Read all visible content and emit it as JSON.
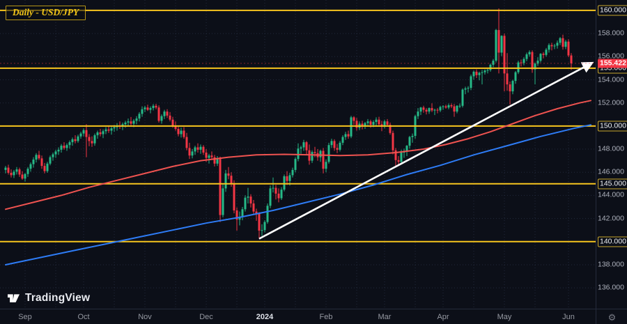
{
  "chart": {
    "title": "Daily - USD/JPY",
    "symbol": "USD/JPY",
    "timeframe": "Daily",
    "colors": {
      "background": "#0c0f18",
      "grid": "#222a3c",
      "candle_up": "#26b987",
      "candle_down": "#f23645",
      "level_yellow": "#f7c51e",
      "ma_red": "#ef5350",
      "ma_blue": "#2e7cf6",
      "trendline": "#ffffff",
      "axis_text": "#aeb2bd",
      "axis_muted": "#9598a1",
      "current_badge": "#f23645"
    }
  },
  "watermark": {
    "brand": "TradingView"
  },
  "icons": {
    "settings_gear": "⚙"
  },
  "chart_data": {
    "type": "candlestick",
    "title": "Daily - USD/JPY",
    "ylim": [
      134.2,
      160.9
    ],
    "grid": true,
    "x_labels": [
      "Sep",
      "Oct",
      "Nov",
      "Dec",
      "2024",
      "Feb",
      "Mar",
      "Apr",
      "May",
      "Jun"
    ],
    "month_start_indices": [
      7,
      28,
      50,
      72,
      93,
      115,
      136,
      157,
      179,
      202
    ],
    "price_ticks_regular": [
      136,
      138,
      142,
      144,
      146,
      148,
      152,
      154,
      156,
      158
    ],
    "level_lines": [
      140,
      145,
      150,
      155,
      160
    ],
    "current_price": 155.422,
    "candles": [
      [
        146.2,
        146.55,
        145.9,
        146.4
      ],
      [
        146.4,
        146.65,
        145.8,
        145.95
      ],
      [
        145.95,
        146.25,
        145.55,
        145.75
      ],
      [
        145.75,
        146.2,
        145.5,
        146.05
      ],
      [
        146.05,
        146.45,
        145.8,
        146.25
      ],
      [
        146.25,
        146.4,
        145.6,
        145.8
      ],
      [
        145.8,
        146.1,
        145.35,
        145.45
      ],
      [
        145.45,
        145.92,
        145.2,
        145.85
      ],
      [
        145.85,
        146.45,
        145.6,
        146.3
      ],
      [
        146.3,
        146.85,
        146.05,
        146.7
      ],
      [
        146.7,
        147.3,
        146.4,
        147.1
      ],
      [
        147.1,
        147.65,
        146.85,
        147.5
      ],
      [
        147.5,
        147.85,
        147.05,
        147.2
      ],
      [
        147.2,
        147.45,
        146.3,
        146.55
      ],
      [
        146.55,
        146.8,
        145.9,
        146.1
      ],
      [
        146.1,
        146.9,
        145.95,
        146.75
      ],
      [
        146.75,
        147.45,
        146.6,
        147.3
      ],
      [
        147.3,
        147.7,
        147.0,
        147.55
      ],
      [
        147.55,
        147.95,
        147.25,
        147.8
      ],
      [
        147.8,
        148.15,
        147.5,
        147.95
      ],
      [
        147.95,
        148.45,
        147.7,
        148.3
      ],
      [
        148.3,
        148.6,
        147.95,
        148.1
      ],
      [
        148.1,
        148.5,
        147.85,
        148.35
      ],
      [
        148.35,
        148.75,
        148.05,
        148.6
      ],
      [
        148.6,
        149.0,
        148.3,
        148.85
      ],
      [
        148.85,
        149.2,
        148.5,
        148.7
      ],
      [
        148.7,
        149.25,
        148.55,
        149.1
      ],
      [
        149.1,
        149.5,
        148.9,
        149.35
      ],
      [
        149.35,
        149.8,
        149.1,
        149.65
      ],
      [
        149.65,
        150.16,
        147.3,
        149.05
      ],
      [
        149.05,
        149.3,
        148.25,
        148.7
      ],
      [
        148.7,
        149.1,
        148.2,
        148.5
      ],
      [
        148.5,
        149.35,
        148.3,
        149.2
      ],
      [
        149.2,
        149.6,
        148.9,
        149.45
      ],
      [
        149.45,
        149.75,
        149.1,
        149.3
      ],
      [
        149.3,
        149.7,
        148.95,
        149.55
      ],
      [
        149.55,
        149.9,
        149.3,
        149.7
      ],
      [
        149.7,
        150.0,
        149.4,
        149.6
      ],
      [
        149.6,
        149.95,
        149.25,
        149.8
      ],
      [
        149.8,
        150.1,
        149.5,
        149.9
      ],
      [
        149.9,
        150.25,
        149.6,
        150.05
      ],
      [
        150.05,
        150.4,
        149.75,
        149.95
      ],
      [
        149.95,
        150.3,
        149.65,
        150.15
      ],
      [
        150.15,
        150.45,
        149.85,
        150.3
      ],
      [
        150.3,
        150.65,
        150.0,
        150.4
      ],
      [
        150.4,
        150.78,
        149.95,
        150.2
      ],
      [
        150.2,
        150.6,
        149.9,
        150.45
      ],
      [
        150.45,
        150.85,
        150.15,
        150.65
      ],
      [
        150.65,
        151.2,
        150.4,
        151.05
      ],
      [
        151.05,
        151.7,
        150.8,
        151.45
      ],
      [
        151.45,
        151.75,
        151.2,
        151.6
      ],
      [
        151.6,
        151.85,
        151.3,
        151.4
      ],
      [
        151.4,
        151.7,
        151.1,
        151.55
      ],
      [
        151.55,
        151.9,
        151.35,
        151.75
      ],
      [
        151.75,
        151.92,
        151.45,
        151.6
      ],
      [
        151.6,
        151.78,
        150.3,
        150.45
      ],
      [
        150.45,
        151.0,
        150.2,
        150.85
      ],
      [
        150.85,
        151.4,
        150.6,
        151.25
      ],
      [
        151.25,
        151.45,
        150.7,
        150.9
      ],
      [
        150.9,
        151.2,
        150.4,
        150.55
      ],
      [
        150.55,
        150.8,
        149.85,
        150.05
      ],
      [
        150.05,
        150.4,
        149.6,
        149.75
      ],
      [
        149.75,
        149.95,
        149.1,
        149.3
      ],
      [
        149.3,
        149.85,
        149.0,
        149.6
      ],
      [
        149.6,
        149.9,
        148.9,
        149.05
      ],
      [
        149.05,
        149.4,
        147.9,
        148.1
      ],
      [
        148.1,
        148.55,
        147.15,
        147.45
      ],
      [
        147.45,
        148.0,
        147.2,
        147.8
      ],
      [
        147.8,
        148.3,
        147.5,
        148.15
      ],
      [
        148.15,
        148.5,
        147.7,
        147.95
      ],
      [
        147.95,
        148.4,
        147.6,
        148.2
      ],
      [
        148.2,
        148.35,
        147.5,
        147.7
      ],
      [
        147.7,
        148.0,
        146.9,
        147.25
      ],
      [
        147.25,
        147.6,
        146.75,
        147.45
      ],
      [
        147.45,
        147.8,
        147.1,
        147.3
      ],
      [
        147.3,
        147.5,
        146.5,
        146.75
      ],
      [
        146.75,
        147.4,
        146.55,
        147.15
      ],
      [
        147.15,
        147.35,
        141.7,
        142.3
      ],
      [
        142.3,
        145.0,
        142.1,
        144.6
      ],
      [
        144.6,
        146.2,
        144.3,
        145.9
      ],
      [
        145.9,
        146.45,
        145.4,
        145.7
      ],
      [
        145.7,
        146.0,
        144.75,
        145.0
      ],
      [
        145.0,
        145.3,
        142.45,
        142.7
      ],
      [
        142.7,
        142.95,
        140.95,
        141.9
      ],
      [
        141.9,
        142.6,
        141.4,
        142.15
      ],
      [
        142.15,
        143.0,
        141.85,
        142.8
      ],
      [
        142.8,
        144.0,
        142.6,
        143.8
      ],
      [
        143.8,
        144.65,
        143.3,
        143.9
      ],
      [
        143.9,
        144.1,
        142.95,
        143.3
      ],
      [
        143.3,
        143.6,
        142.4,
        142.6
      ],
      [
        142.6,
        142.85,
        141.8,
        142.4
      ],
      [
        142.4,
        142.55,
        140.25,
        140.95
      ],
      [
        140.95,
        141.5,
        140.5,
        141.0
      ],
      [
        141.0,
        141.85,
        140.8,
        141.7
      ],
      [
        141.7,
        143.3,
        141.55,
        143.1
      ],
      [
        143.1,
        144.85,
        142.9,
        144.6
      ],
      [
        144.6,
        145.55,
        144.25,
        144.65
      ],
      [
        144.65,
        144.9,
        143.65,
        144.15
      ],
      [
        144.15,
        144.6,
        143.4,
        143.75
      ],
      [
        143.75,
        144.7,
        143.6,
        144.5
      ],
      [
        144.5,
        145.8,
        144.35,
        145.65
      ],
      [
        145.65,
        146.1,
        144.9,
        145.25
      ],
      [
        145.25,
        145.95,
        144.85,
        145.75
      ],
      [
        145.75,
        146.4,
        145.55,
        146.2
      ],
      [
        146.2,
        147.3,
        146.0,
        147.15
      ],
      [
        147.15,
        148.5,
        146.95,
        148.05
      ],
      [
        148.05,
        148.3,
        147.6,
        148.15
      ],
      [
        148.15,
        148.8,
        147.85,
        148.6
      ],
      [
        148.6,
        148.7,
        147.55,
        147.9
      ],
      [
        147.9,
        148.4,
        146.65,
        147.0
      ],
      [
        147.0,
        147.9,
        146.8,
        147.75
      ],
      [
        147.75,
        148.2,
        147.3,
        147.65
      ],
      [
        147.65,
        148.0,
        147.0,
        147.3
      ],
      [
        147.3,
        147.95,
        146.9,
        147.85
      ],
      [
        147.85,
        148.1,
        145.9,
        146.3
      ],
      [
        146.3,
        147.1,
        146.0,
        146.9
      ],
      [
        146.9,
        148.55,
        146.75,
        148.35
      ],
      [
        148.35,
        148.9,
        148.1,
        148.7
      ],
      [
        148.7,
        148.85,
        147.85,
        148.1
      ],
      [
        148.1,
        148.45,
        147.65,
        147.95
      ],
      [
        147.95,
        148.7,
        147.8,
        148.55
      ],
      [
        148.55,
        149.2,
        148.35,
        149.05
      ],
      [
        149.05,
        149.5,
        148.8,
        149.3
      ],
      [
        149.3,
        149.6,
        148.9,
        149.1
      ],
      [
        149.1,
        150.88,
        148.95,
        150.75
      ],
      [
        150.75,
        150.85,
        150.1,
        150.45
      ],
      [
        150.45,
        150.7,
        149.6,
        149.85
      ],
      [
        149.85,
        150.4,
        149.65,
        150.2
      ],
      [
        150.2,
        150.45,
        149.7,
        150.0
      ],
      [
        150.0,
        150.35,
        149.75,
        150.25
      ],
      [
        150.25,
        150.6,
        149.95,
        150.4
      ],
      [
        150.4,
        150.55,
        149.85,
        150.1
      ],
      [
        150.1,
        150.5,
        149.9,
        150.35
      ],
      [
        150.35,
        150.75,
        150.05,
        150.55
      ],
      [
        150.55,
        150.8,
        149.95,
        150.15
      ],
      [
        150.15,
        150.45,
        149.55,
        149.95
      ],
      [
        149.95,
        150.55,
        149.8,
        150.4
      ],
      [
        150.4,
        150.6,
        149.95,
        150.1
      ],
      [
        150.1,
        150.3,
        149.25,
        149.4
      ],
      [
        149.4,
        149.6,
        147.55,
        147.9
      ],
      [
        147.9,
        148.1,
        146.48,
        147.05
      ],
      [
        147.05,
        147.4,
        146.55,
        146.9
      ],
      [
        146.9,
        147.95,
        146.7,
        147.7
      ],
      [
        147.7,
        148.05,
        147.25,
        147.8
      ],
      [
        147.8,
        148.35,
        147.4,
        148.3
      ],
      [
        148.3,
        149.15,
        148.05,
        149.05
      ],
      [
        149.05,
        149.35,
        148.55,
        149.15
      ],
      [
        149.15,
        150.96,
        148.9,
        150.85
      ],
      [
        150.85,
        151.55,
        150.6,
        151.25
      ],
      [
        151.25,
        151.65,
        150.95,
        151.6
      ],
      [
        151.6,
        151.75,
        151.15,
        151.4
      ],
      [
        151.4,
        151.55,
        151.0,
        151.25
      ],
      [
        151.25,
        151.6,
        151.05,
        151.55
      ],
      [
        151.55,
        151.97,
        151.2,
        151.35
      ],
      [
        151.35,
        151.5,
        150.95,
        151.4
      ],
      [
        151.4,
        151.55,
        151.1,
        151.35
      ],
      [
        151.35,
        151.75,
        151.2,
        151.65
      ],
      [
        151.65,
        151.8,
        151.4,
        151.7
      ],
      [
        151.7,
        151.85,
        151.5,
        151.6
      ],
      [
        151.6,
        151.95,
        151.45,
        151.8
      ],
      [
        151.8,
        151.95,
        151.55,
        151.7
      ],
      [
        151.7,
        151.9,
        150.8,
        151.25
      ],
      [
        151.25,
        151.8,
        151.1,
        151.75
      ],
      [
        151.75,
        151.95,
        151.55,
        151.75
      ],
      [
        151.75,
        153.25,
        151.6,
        153.15
      ],
      [
        153.15,
        153.4,
        152.75,
        153.25
      ],
      [
        153.25,
        153.45,
        152.9,
        153.3
      ],
      [
        153.3,
        154.45,
        153.1,
        154.3
      ],
      [
        154.3,
        154.8,
        154.0,
        154.7
      ],
      [
        154.7,
        154.9,
        154.15,
        154.4
      ],
      [
        154.4,
        154.7,
        153.95,
        154.6
      ],
      [
        154.6,
        154.85,
        153.6,
        154.65
      ],
      [
        154.65,
        154.9,
        154.45,
        154.8
      ],
      [
        154.8,
        154.95,
        154.55,
        154.85
      ],
      [
        154.85,
        155.4,
        154.7,
        155.3
      ],
      [
        155.3,
        155.8,
        155.1,
        155.65
      ],
      [
        155.65,
        158.4,
        155.5,
        158.3
      ],
      [
        158.3,
        160.17,
        154.55,
        156.35
      ],
      [
        156.35,
        157.85,
        156.05,
        157.8
      ],
      [
        157.8,
        158.0,
        153.0,
        154.55
      ],
      [
        154.55,
        156.3,
        153.05,
        153.6
      ],
      [
        153.6,
        153.85,
        151.86,
        153.0
      ],
      [
        153.0,
        154.0,
        152.75,
        153.9
      ],
      [
        153.9,
        154.75,
        153.65,
        154.65
      ],
      [
        154.65,
        155.65,
        154.5,
        155.5
      ],
      [
        155.5,
        155.75,
        155.15,
        155.45
      ],
      [
        155.45,
        155.95,
        155.25,
        155.8
      ],
      [
        155.8,
        156.35,
        155.6,
        156.2
      ],
      [
        156.2,
        156.55,
        156.0,
        156.4
      ],
      [
        156.4,
        156.55,
        154.6,
        154.9
      ],
      [
        154.9,
        155.5,
        153.6,
        155.4
      ],
      [
        155.4,
        155.95,
        155.2,
        155.65
      ],
      [
        155.65,
        156.3,
        155.5,
        156.25
      ],
      [
        156.25,
        156.4,
        155.85,
        156.15
      ],
      [
        156.15,
        156.75,
        156.0,
        156.6
      ],
      [
        156.6,
        157.15,
        156.35,
        157.0
      ],
      [
        157.0,
        157.2,
        156.55,
        156.9
      ],
      [
        156.9,
        157.1,
        156.65,
        156.95
      ],
      [
        156.95,
        157.4,
        156.7,
        157.2
      ],
      [
        157.2,
        157.7,
        157.0,
        157.6
      ],
      [
        157.6,
        157.9,
        156.6,
        156.85
      ],
      [
        156.85,
        157.45,
        156.65,
        157.3
      ],
      [
        157.3,
        157.5,
        155.95,
        156.1
      ],
      [
        156.1,
        156.3,
        154.85,
        155.42
      ]
    ],
    "ma_blue_points": [
      [
        0,
        138.0
      ],
      [
        12,
        138.6
      ],
      [
        24,
        139.2
      ],
      [
        36,
        139.8
      ],
      [
        48,
        140.4
      ],
      [
        60,
        141.0
      ],
      [
        72,
        141.6
      ],
      [
        84,
        142.1
      ],
      [
        96,
        142.7
      ],
      [
        108,
        143.4
      ],
      [
        120,
        144.1
      ],
      [
        132,
        144.9
      ],
      [
        144,
        145.8
      ],
      [
        156,
        146.6
      ],
      [
        168,
        147.5
      ],
      [
        180,
        148.3
      ],
      [
        192,
        149.1
      ],
      [
        204,
        149.8
      ],
      [
        210,
        150.1
      ]
    ],
    "ma_red_points": [
      [
        0,
        142.8
      ],
      [
        10,
        143.4
      ],
      [
        20,
        144.0
      ],
      [
        30,
        144.7
      ],
      [
        40,
        145.3
      ],
      [
        50,
        145.9
      ],
      [
        60,
        146.5
      ],
      [
        70,
        147.0
      ],
      [
        80,
        147.3
      ],
      [
        90,
        147.5
      ],
      [
        100,
        147.55
      ],
      [
        110,
        147.5
      ],
      [
        120,
        147.45
      ],
      [
        130,
        147.5
      ],
      [
        140,
        147.7
      ],
      [
        150,
        148.0
      ],
      [
        158,
        148.4
      ],
      [
        166,
        148.9
      ],
      [
        174,
        149.5
      ],
      [
        182,
        150.2
      ],
      [
        190,
        150.9
      ],
      [
        198,
        151.5
      ],
      [
        206,
        152.0
      ],
      [
        210,
        152.2
      ]
    ],
    "trendline": {
      "from_index": 91,
      "from_price": 140.25,
      "to_index": 210,
      "to_price": 155.4,
      "arrow": true
    }
  }
}
